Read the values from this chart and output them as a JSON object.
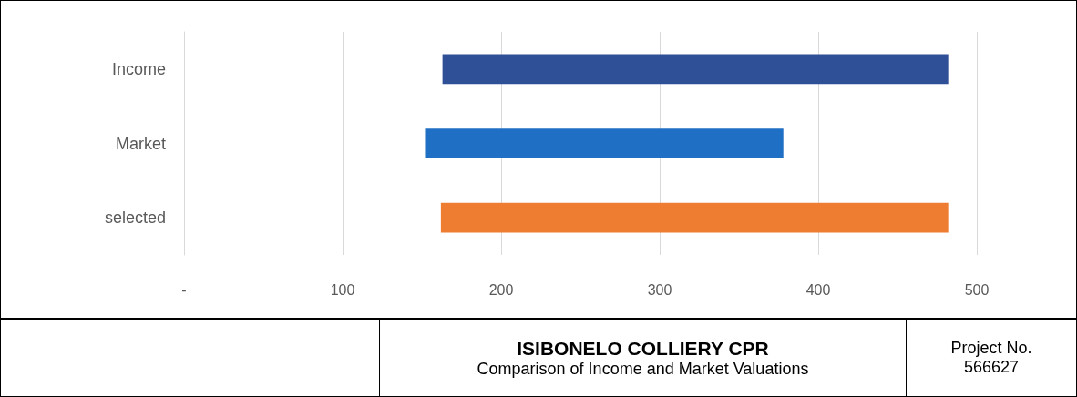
{
  "chart_data": {
    "type": "bar",
    "orientation": "horizontal",
    "title": "ISIBONELO COLLIERY CPR",
    "subtitle": "Comparison of Income and Market Valuations",
    "annotations": [
      "Project No. 566627"
    ],
    "categories": [
      "Income",
      "Market",
      "selected"
    ],
    "base": [
      163,
      152,
      162
    ],
    "values": [
      319,
      226,
      320
    ],
    "colors": [
      "#2f4f96",
      "#1f6fc4",
      "#ef7d31"
    ],
    "xlim": [
      0,
      500
    ],
    "xticks": [
      {
        "value": 0,
        "label": "-"
      },
      100,
      200,
      300,
      400,
      500
    ],
    "grid": "x"
  }
}
